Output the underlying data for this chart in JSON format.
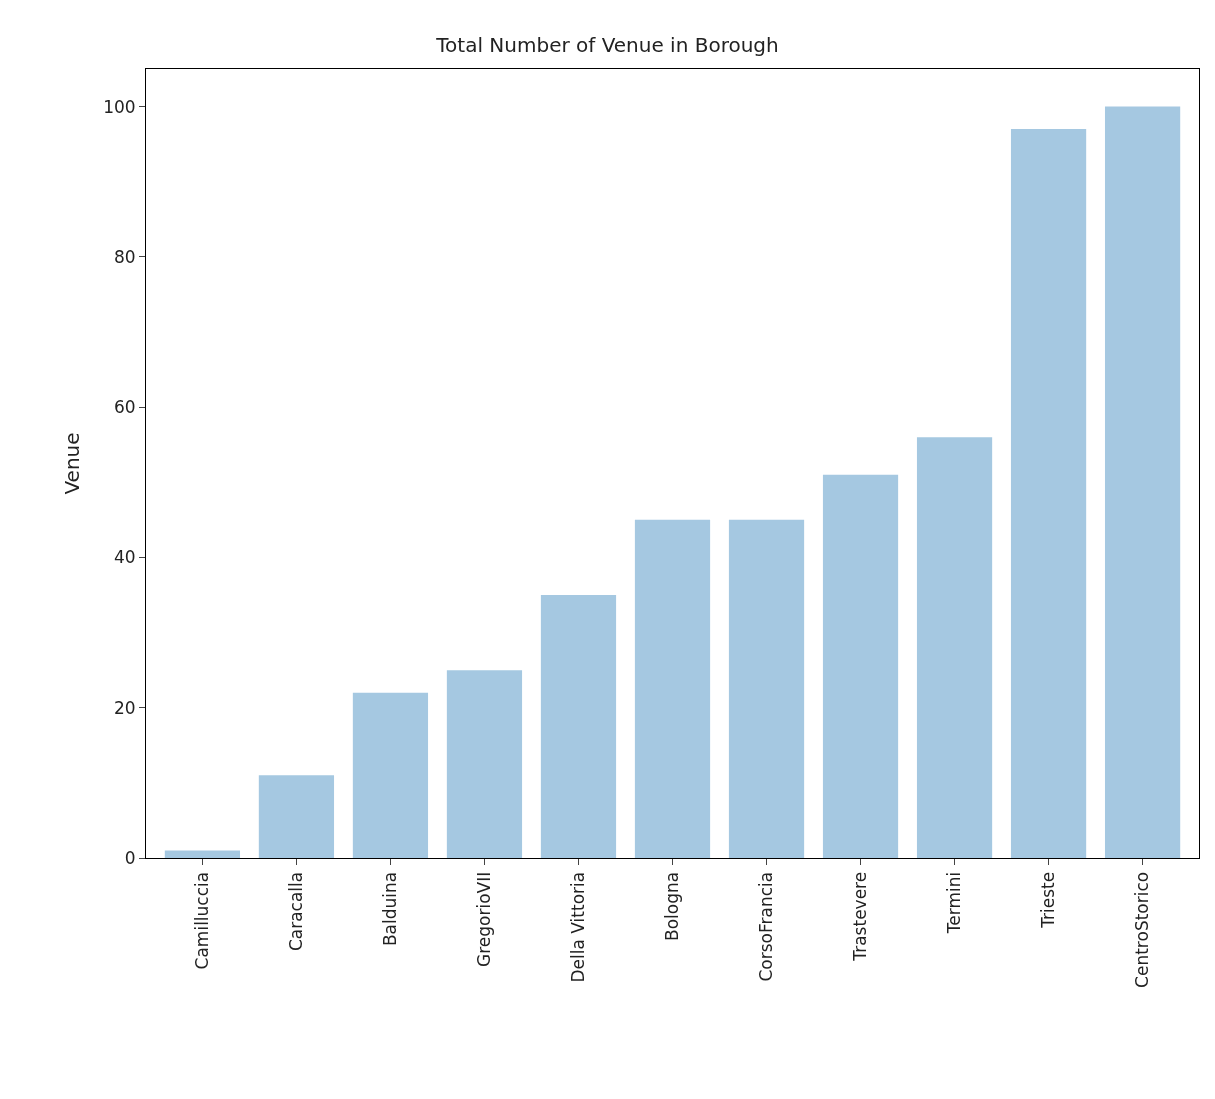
{
  "chart_data": {
    "type": "bar",
    "title": "Total Number of Venue in Borough",
    "ylabel": "Venue",
    "categories": [
      "Camilluccia",
      "Caracalla",
      "Balduina",
      "GregorioVII",
      "Della Vittoria",
      "Bologna",
      "CorsoFrancia",
      "Trastevere",
      "Termini",
      "Trieste",
      "CentroStorico"
    ],
    "values": [
      1,
      11,
      22,
      25,
      35,
      45,
      45,
      51,
      56,
      97,
      100
    ],
    "color": "#a5c8e1",
    "ylim": [
      0,
      105
    ],
    "yticks": [
      0,
      20,
      40,
      60,
      80,
      100
    ]
  }
}
